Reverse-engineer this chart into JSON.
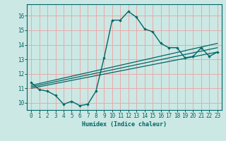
{
  "title": "",
  "xlabel": "Humidex (Indice chaleur)",
  "ylabel": "",
  "bg_color": "#cce8e4",
  "grid_color": "#e8aaaa",
  "line_color": "#006666",
  "xlim": [
    -0.5,
    23.5
  ],
  "ylim": [
    9.5,
    16.8
  ],
  "xticks": [
    0,
    1,
    2,
    3,
    4,
    5,
    6,
    7,
    8,
    9,
    10,
    11,
    12,
    13,
    14,
    15,
    16,
    17,
    18,
    19,
    20,
    21,
    22,
    23
  ],
  "yticks": [
    10,
    11,
    12,
    13,
    14,
    15,
    16
  ],
  "main_series": {
    "x": [
      0,
      1,
      2,
      3,
      4,
      5,
      6,
      7,
      8,
      9,
      10,
      11,
      12,
      13,
      14,
      15,
      16,
      17,
      18,
      19,
      20,
      21,
      22,
      23
    ],
    "y": [
      11.4,
      10.9,
      10.8,
      10.5,
      9.9,
      10.1,
      9.8,
      9.9,
      10.8,
      13.1,
      15.7,
      15.7,
      16.3,
      15.9,
      15.1,
      14.9,
      14.1,
      13.8,
      13.8,
      13.1,
      13.2,
      13.8,
      13.2,
      13.5
    ]
  },
  "trend_lines": [
    {
      "x": [
        0,
        23
      ],
      "y": [
        11.0,
        13.5
      ]
    },
    {
      "x": [
        0,
        23
      ],
      "y": [
        11.1,
        13.8
      ]
    },
    {
      "x": [
        0,
        23
      ],
      "y": [
        11.2,
        14.1
      ]
    }
  ]
}
